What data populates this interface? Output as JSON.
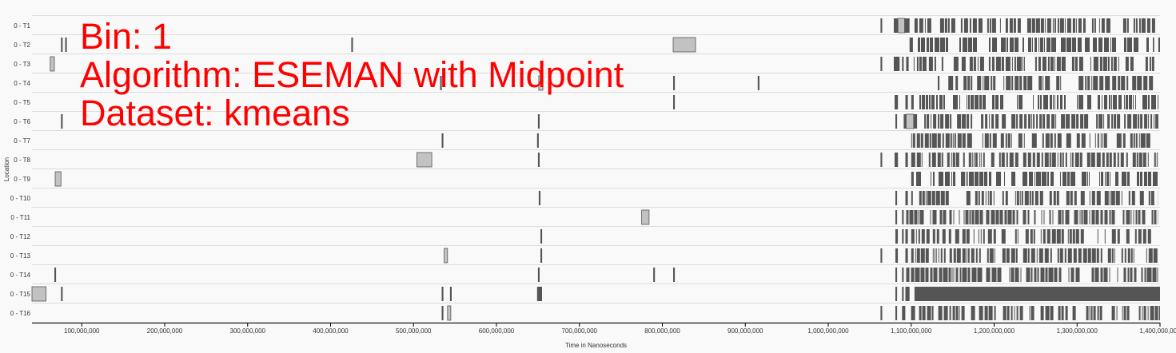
{
  "overlay": {
    "line1": "Bin: 1",
    "line2": "Algorithm: ESEMAN with Midpoint",
    "line3": "Dataset: kmeans"
  },
  "colors": {
    "background": "#f9f9f9",
    "row_line": "#dcdcdc",
    "dark_event": "#555555",
    "light_event": "#c2c2c2",
    "overlay_text": "#ff0000"
  },
  "chart_data": {
    "type": "timeline",
    "xlabel": "Time in Nanoseconds",
    "ylabel": "Location",
    "xlim": [
      40000000,
      1400000000
    ],
    "x_ticks": [
      100000000,
      200000000,
      300000000,
      400000000,
      500000000,
      600000000,
      700000000,
      800000000,
      900000000,
      1000000000,
      1100000000,
      1200000000,
      1300000000,
      1400000000
    ],
    "x_tick_labels": [
      "100,000,000",
      "200,000,000",
      "300,000,000",
      "400,000,000",
      "500,000,000",
      "600,000,000",
      "700,000,000",
      "800,000,000",
      "900,000,000",
      "1,000,000,000",
      "1,100,000,000",
      "1,200,000,000",
      "1,300,000,000",
      "1,400,000,000"
    ],
    "rows": [
      {
        "label": "0 - T1",
        "events": [
          [
            1063000000,
            1065000000,
            "d"
          ],
          [
            1079000000,
            1084000000,
            "d"
          ],
          [
            1084000000,
            1092000000,
            "l"
          ],
          [
            1092000000,
            1098000000,
            "d"
          ]
        ],
        "dense": [
          [
            1104000000,
            1398000000,
            3
          ]
        ]
      },
      {
        "label": "0 - T2",
        "events": [
          [
            75000000,
            77000000,
            "d"
          ],
          [
            80000000,
            82000000,
            "d"
          ],
          [
            425000000,
            427000000,
            "d"
          ],
          [
            813000000,
            840000000,
            "l"
          ],
          [
            1098000000,
            1102000000,
            "d"
          ],
          [
            1398000000,
            1400000000,
            "d"
          ]
        ],
        "dense": [
          [
            1108000000,
            1393000000,
            4
          ]
        ]
      },
      {
        "label": "0 - T3",
        "events": [
          [
            62000000,
            67000000,
            "l"
          ],
          [
            1063000000,
            1065000000,
            "d"
          ],
          [
            1079000000,
            1086000000,
            "d"
          ],
          [
            1089000000,
            1091000000,
            "d"
          ],
          [
            1094000000,
            1097000000,
            "d"
          ]
        ],
        "dense": [
          [
            1103000000,
            1393000000,
            4
          ]
        ]
      },
      {
        "label": "0 - T4",
        "events": [
          [
            532000000,
            534000000,
            "d"
          ],
          [
            651000000,
            656000000,
            "l"
          ],
          [
            813000000,
            815000000,
            "d"
          ],
          [
            915000000,
            917000000,
            "d"
          ],
          [
            1132000000,
            1134000000,
            "d"
          ]
        ],
        "dense": [
          [
            1138000000,
            1398000000,
            4
          ]
        ]
      },
      {
        "label": "0 - T5",
        "events": [
          [
            813000000,
            815000000,
            "d"
          ],
          [
            1080000000,
            1084000000,
            "d"
          ],
          [
            1093000000,
            1096000000,
            "d"
          ],
          [
            1100000000,
            1103000000,
            "d"
          ]
        ],
        "dense": [
          [
            1106000000,
            1398000000,
            4
          ]
        ]
      },
      {
        "label": "0 - T6",
        "events": [
          [
            75000000,
            77000000,
            "d"
          ],
          [
            650000000,
            652000000,
            "d"
          ],
          [
            1081000000,
            1083000000,
            "d"
          ],
          [
            1091000000,
            1094000000,
            "d"
          ],
          [
            1094000000,
            1103000000,
            "l"
          ],
          [
            1103000000,
            1107000000,
            "d"
          ]
        ],
        "dense": [
          [
            1110000000,
            1398000000,
            3
          ]
        ]
      },
      {
        "label": "0 - T7",
        "events": [
          [
            534000000,
            536000000,
            "d"
          ],
          [
            649000000,
            651000000,
            "d"
          ]
        ],
        "dense": [
          [
            1100000000,
            1393000000,
            4
          ]
        ]
      },
      {
        "label": "0 - T8",
        "events": [
          [
            504000000,
            522000000,
            "l"
          ],
          [
            650000000,
            652000000,
            "d"
          ],
          [
            1063000000,
            1065000000,
            "d"
          ],
          [
            1080000000,
            1084000000,
            "d"
          ],
          [
            1093000000,
            1096000000,
            "d"
          ]
        ],
        "dense": [
          [
            1100000000,
            1398000000,
            3
          ]
        ]
      },
      {
        "label": "0 - T9",
        "events": [
          [
            68000000,
            75000000,
            "l"
          ],
          [
            1100000000,
            1103000000,
            "d"
          ]
        ],
        "dense": [
          [
            1106000000,
            1398000000,
            4
          ]
        ]
      },
      {
        "label": "0 - T10",
        "events": [
          [
            651000000,
            653000000,
            "d"
          ],
          [
            1081000000,
            1083000000,
            "d"
          ],
          [
            1093000000,
            1096000000,
            "d"
          ]
        ],
        "dense": [
          [
            1100000000,
            1398000000,
            3
          ]
        ]
      },
      {
        "label": "0 - T11",
        "events": [
          [
            775000000,
            784000000,
            "l"
          ],
          [
            1081000000,
            1083000000,
            "d"
          ],
          [
            1089000000,
            1091000000,
            "d"
          ]
        ],
        "dense": [
          [
            1094000000,
            1398000000,
            3
          ]
        ]
      },
      {
        "label": "0 - T12",
        "events": [
          [
            653000000,
            655000000,
            "d"
          ],
          [
            1081000000,
            1084000000,
            "d"
          ],
          [
            1089000000,
            1091000000,
            "d"
          ],
          [
            1093000000,
            1096000000,
            "d"
          ]
        ],
        "dense": [
          [
            1100000000,
            1398000000,
            3
          ]
        ]
      },
      {
        "label": "0 - T13",
        "events": [
          [
            537000000,
            541000000,
            "l"
          ],
          [
            653000000,
            655000000,
            "d"
          ],
          [
            1063000000,
            1065000000,
            "d"
          ],
          [
            1081000000,
            1084000000,
            "d"
          ],
          [
            1093000000,
            1096000000,
            "d"
          ]
        ],
        "dense": [
          [
            1100000000,
            1398000000,
            3
          ]
        ]
      },
      {
        "label": "0 - T14",
        "events": [
          [
            67000000,
            69000000,
            "d"
          ],
          [
            650000000,
            652000000,
            "d"
          ],
          [
            789000000,
            791000000,
            "d"
          ],
          [
            813000000,
            815000000,
            "d"
          ],
          [
            1081000000,
            1083000000,
            "d"
          ],
          [
            1089000000,
            1091000000,
            "d"
          ]
        ],
        "dense": [
          [
            1094000000,
            1398000000,
            4
          ]
        ]
      },
      {
        "label": "0 - T15",
        "events": [
          [
            40000000,
            57000000,
            "l"
          ],
          [
            75000000,
            77000000,
            "d"
          ],
          [
            534000000,
            536000000,
            "d"
          ],
          [
            544000000,
            546000000,
            "d"
          ],
          [
            649000000,
            655000000,
            "d"
          ],
          [
            1081000000,
            1083000000,
            "d"
          ],
          [
            1089000000,
            1091000000,
            "d"
          ],
          [
            1093000000,
            1098000000,
            "d"
          ],
          [
            1104000000,
            1400000000,
            "d"
          ]
        ],
        "dense": []
      },
      {
        "label": "0 - T16",
        "events": [
          [
            534000000,
            536000000,
            "d"
          ],
          [
            541000000,
            545000000,
            "l"
          ],
          [
            1063000000,
            1065000000,
            "d"
          ],
          [
            1081000000,
            1083000000,
            "d"
          ],
          [
            1089000000,
            1093000000,
            "d"
          ]
        ],
        "dense": [
          [
            1096000000,
            1400000000,
            3
          ]
        ]
      }
    ]
  }
}
